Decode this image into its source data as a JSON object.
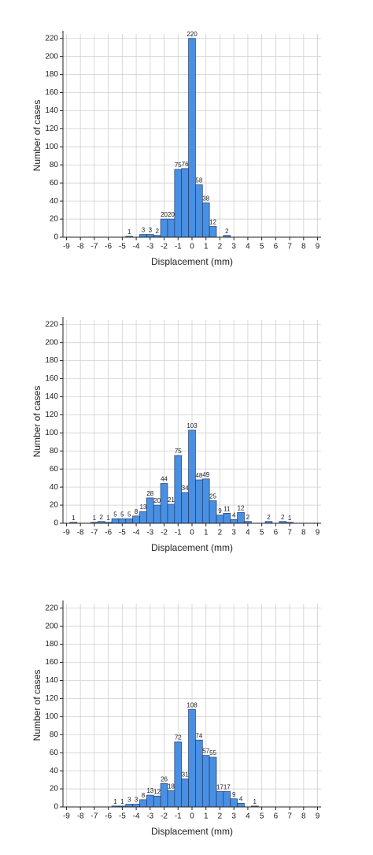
{
  "chart_data": [
    {
      "type": "histogram",
      "xlabel": "Displacement (mm)",
      "ylabel": "Number of cases",
      "bins": [
        -9.25,
        -8.75,
        -8.25,
        -7.75,
        -7.25,
        -6.75,
        -6.25,
        -5.75,
        -5.25,
        -4.75,
        -4.25,
        -3.75,
        -3.25,
        -2.75,
        -2.25,
        -1.75,
        -1.25,
        -0.75,
        -0.25,
        0.25,
        0.75,
        1.25,
        1.75,
        2.25,
        2.75,
        3.25,
        3.75,
        4.25,
        4.75,
        5.25,
        5.75,
        6.25,
        6.75,
        7.25,
        7.75,
        8.25,
        8.75,
        9.25
      ],
      "counts": [
        0,
        0,
        0,
        0,
        0,
        0,
        0,
        0,
        0,
        1,
        0,
        3,
        3,
        2,
        20,
        20,
        75,
        76,
        220,
        58,
        38,
        12,
        0,
        2,
        0,
        0,
        0,
        0,
        0,
        0,
        0,
        0,
        0,
        0,
        0,
        0,
        0
      ],
      "color": "#4a90e2",
      "xlim": [
        -9.25,
        9.25
      ],
      "ylim": [
        0,
        225
      ],
      "xticks": [
        -9,
        -8,
        -7,
        -6,
        -5,
        -4,
        -3,
        -2,
        -1,
        0,
        1,
        2,
        3,
        4,
        5,
        6,
        7,
        8,
        9
      ],
      "yticks": [
        0,
        20,
        40,
        60,
        80,
        100,
        120,
        140,
        160,
        180,
        200,
        220
      ],
      "grid": true
    },
    {
      "type": "histogram",
      "xlabel": "Displacement (mm)",
      "ylabel": "Number of cases",
      "bins": [
        -9.25,
        -8.75,
        -8.25,
        -7.75,
        -7.25,
        -6.75,
        -6.25,
        -5.75,
        -5.25,
        -4.75,
        -4.25,
        -3.75,
        -3.25,
        -2.75,
        -2.25,
        -1.75,
        -1.25,
        -0.75,
        -0.25,
        0.25,
        0.75,
        1.25,
        1.75,
        2.25,
        2.75,
        3.25,
        3.75,
        4.25,
        4.75,
        5.25,
        5.75,
        6.25,
        6.75,
        7.25,
        7.75,
        8.25,
        8.75,
        9.25
      ],
      "counts": [
        0,
        1,
        0,
        0,
        1,
        2,
        1,
        5,
        5,
        5,
        8,
        13,
        28,
        20,
        44,
        21,
        75,
        34,
        103,
        48,
        49,
        25,
        9,
        11,
        4,
        12,
        2,
        0,
        0,
        2,
        0,
        2,
        1,
        0,
        0,
        0,
        0
      ],
      "color": "#4a90e2",
      "xlim": [
        -9.25,
        9.25
      ],
      "ylim": [
        0,
        225
      ],
      "xticks": [
        -9,
        -8,
        -7,
        -6,
        -5,
        -4,
        -3,
        -2,
        -1,
        0,
        1,
        2,
        3,
        4,
        5,
        6,
        7,
        8,
        9
      ],
      "yticks": [
        0,
        20,
        40,
        60,
        80,
        100,
        120,
        140,
        160,
        180,
        200,
        220
      ],
      "grid": true
    },
    {
      "type": "histogram",
      "xlabel": "Displacement (mm)",
      "ylabel": "Number of cases",
      "bins": [
        -9.25,
        -8.75,
        -8.25,
        -7.75,
        -7.25,
        -6.75,
        -6.25,
        -5.75,
        -5.25,
        -4.75,
        -4.25,
        -3.75,
        -3.25,
        -2.75,
        -2.25,
        -1.75,
        -1.25,
        -0.75,
        -0.25,
        0.25,
        0.75,
        1.25,
        1.75,
        2.25,
        2.75,
        3.25,
        3.75,
        4.25,
        4.75,
        5.25,
        5.75,
        6.25,
        6.75,
        7.25,
        7.75,
        8.25,
        8.75,
        9.25
      ],
      "counts": [
        0,
        0,
        0,
        0,
        0,
        0,
        0,
        1,
        1,
        3,
        3,
        8,
        13,
        12,
        26,
        18,
        72,
        31,
        108,
        74,
        57,
        55,
        17,
        17,
        9,
        4,
        0,
        1,
        0,
        0,
        0,
        0,
        0,
        0,
        0,
        0,
        0
      ],
      "color": "#4a90e2",
      "xlim": [
        -9.25,
        9.25
      ],
      "ylim": [
        0,
        225
      ],
      "xticks": [
        -9,
        -8,
        -7,
        -6,
        -5,
        -4,
        -3,
        -2,
        -1,
        0,
        1,
        2,
        3,
        4,
        5,
        6,
        7,
        8,
        9
      ],
      "yticks": [
        0,
        20,
        40,
        60,
        80,
        100,
        120,
        140,
        160,
        180,
        200,
        220
      ],
      "grid": true
    }
  ]
}
